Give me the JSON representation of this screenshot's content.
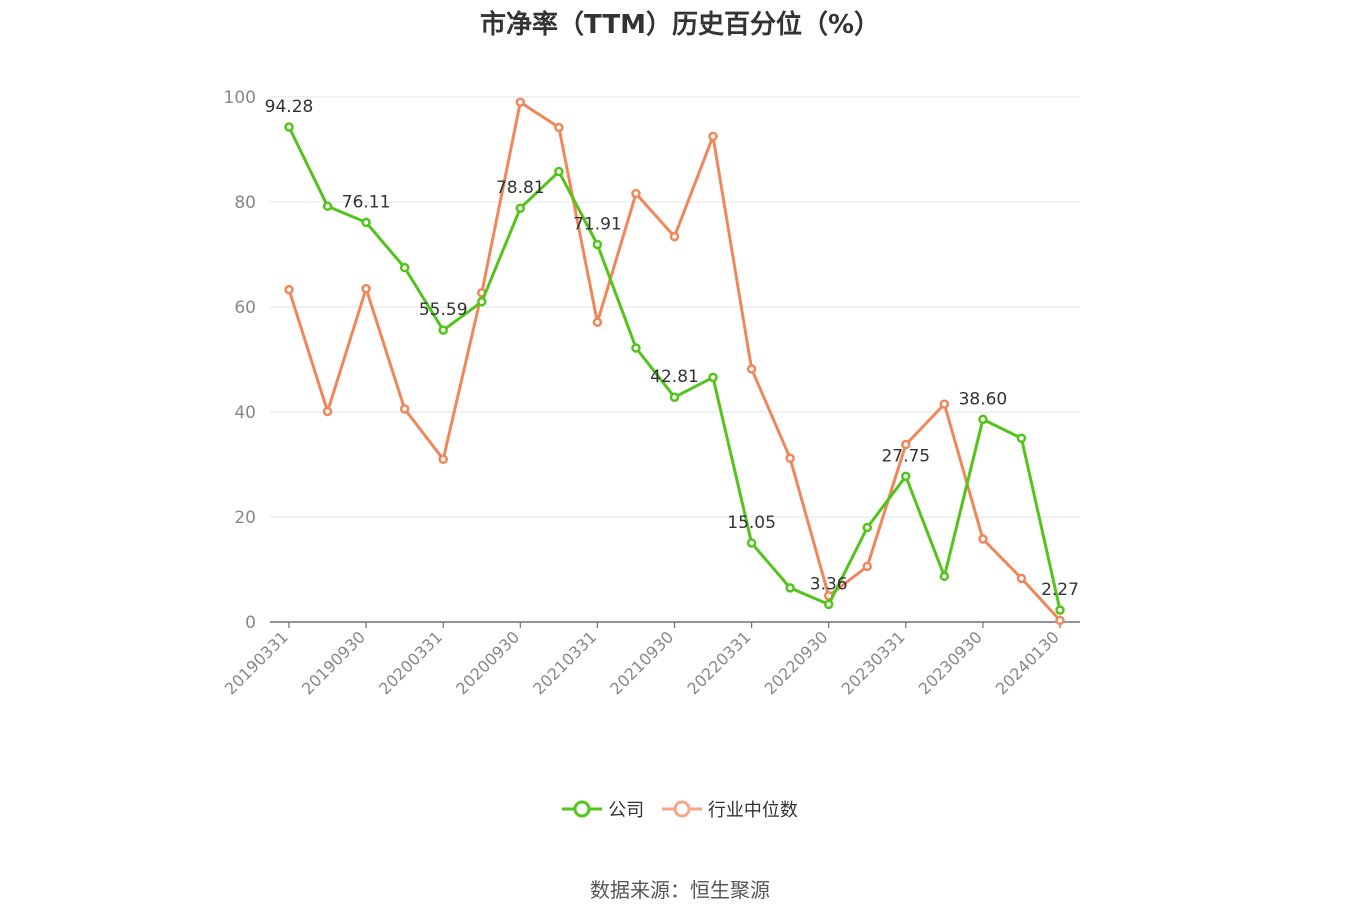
{
  "page_title": "市净率（TTM）历史百分位（%）",
  "source": "数据来源：恒生聚源",
  "colors": {
    "company": "#52c41a",
    "industry": "#f0875a",
    "grid": "#e0e3ea",
    "axis": "#6e7079",
    "tick_label": "#888888"
  },
  "legend": [
    {
      "label": "公司",
      "color": "#52c41a"
    },
    {
      "label": "行业中位数",
      "color": "#f5a78a"
    }
  ],
  "chart_data": {
    "type": "line",
    "title": "市净率（TTM）历史百分位（%）",
    "x": [
      "20190331",
      "20190630",
      "20190930",
      "20191231",
      "20200331",
      "20200630",
      "20200930",
      "20201231",
      "20210331",
      "20210630",
      "20210930",
      "20211231",
      "20220331",
      "20220630",
      "20220930",
      "20221231",
      "20230331",
      "20230630",
      "20230930",
      "20231231",
      "20240130"
    ],
    "x_tick_labels": [
      "20190331",
      "20190930",
      "20200331",
      "20200930",
      "20210331",
      "20210930",
      "20220331",
      "20220930",
      "20230331",
      "20230930",
      "20240130"
    ],
    "ylim": [
      0,
      100
    ],
    "y_ticks": [
      0,
      20,
      40,
      60,
      80,
      100
    ],
    "grid": true,
    "legend_position": "bottom",
    "series": [
      {
        "name": "公司",
        "values": [
          94.28,
          79.2,
          76.11,
          67.5,
          55.59,
          61.0,
          78.81,
          85.8,
          71.91,
          52.2,
          42.81,
          46.6,
          15.05,
          6.5,
          3.36,
          18.0,
          27.75,
          8.7,
          38.6,
          35.0,
          2.27
        ],
        "data_labels": {
          "0": "94.28",
          "2": "76.11",
          "4": "55.59",
          "6": "78.81",
          "8": "71.91",
          "10": "42.81",
          "12": "15.05",
          "14": "3.36",
          "16": "27.75",
          "18": "38.60",
          "20": "2.27"
        }
      },
      {
        "name": "行业中位数",
        "values": [
          63.3,
          40.1,
          63.5,
          40.6,
          31.0,
          62.7,
          99.0,
          94.2,
          57.1,
          81.6,
          73.4,
          92.5,
          48.2,
          31.2,
          5.0,
          10.6,
          33.8,
          41.5,
          15.8,
          8.3,
          0.3
        ]
      }
    ]
  }
}
